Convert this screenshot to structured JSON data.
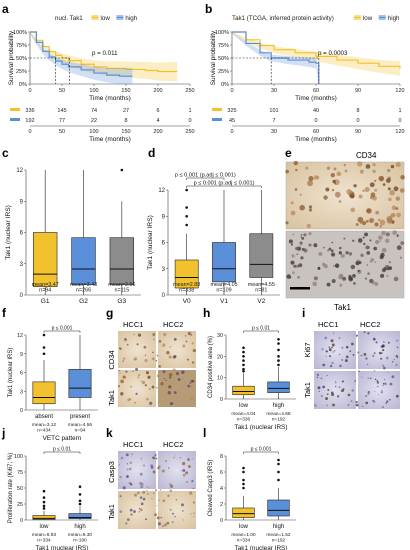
{
  "colors": {
    "low": "#f2c12e",
    "high": "#5b8fd9",
    "grey": "#8c8c8c",
    "axis": "#333333"
  },
  "panels": {
    "a": {
      "letter": "a"
    },
    "b": {
      "letter": "b"
    },
    "c": {
      "letter": "c"
    },
    "d": {
      "letter": "d"
    },
    "e": {
      "letter": "e",
      "top_label": "CD34",
      "bottom_label": "Tak1"
    },
    "f": {
      "letter": "f"
    },
    "g": {
      "letter": "g",
      "col1": "HCC1",
      "col2": "HCC2",
      "row1": "CD34",
      "row2": "Tak1"
    },
    "h": {
      "letter": "h"
    },
    "i": {
      "letter": "i",
      "col1": "HCC1",
      "col2": "HCC2",
      "row1": "Ki67",
      "row2": "Tak1"
    },
    "j": {
      "letter": "j"
    },
    "k": {
      "letter": "k",
      "col1": "HCC1",
      "col2": "HCC2",
      "row1": "Casp3",
      "row2": "Tak1"
    },
    "l": {
      "letter": "l"
    }
  },
  "chart_data": [
    {
      "id": "a",
      "type": "line",
      "legend_title": "nucl. Tak1",
      "xlabel": "Time (months)",
      "ylabel": "Survival probability",
      "xlim": [
        0,
        250
      ],
      "ylim": [
        0,
        1
      ],
      "xticks": [
        "0",
        "50",
        "100",
        "150",
        "200",
        "250"
      ],
      "yticks": [
        "0%",
        "25%",
        "50%",
        "75%",
        "100%"
      ],
      "pvalue": "p = 0.011",
      "median_x": [
        40,
        62
      ],
      "series": [
        {
          "name": "low",
          "x": [
            0,
            10,
            20,
            30,
            40,
            50,
            60,
            80,
            100,
            120,
            150,
            180,
            200,
            230
          ],
          "y": [
            1.0,
            0.84,
            0.72,
            0.62,
            0.55,
            0.5,
            0.45,
            0.38,
            0.33,
            0.3,
            0.28,
            0.26,
            0.24,
            0.24
          ]
        },
        {
          "name": "high",
          "x": [
            0,
            10,
            20,
            30,
            40,
            50,
            60,
            80,
            100,
            120,
            140,
            160
          ],
          "y": [
            1.0,
            0.8,
            0.63,
            0.52,
            0.44,
            0.38,
            0.33,
            0.27,
            0.21,
            0.17,
            0.15,
            0.15
          ]
        }
      ],
      "risk_table": {
        "x": [
          "0",
          "50",
          "100",
          "150",
          "200",
          "250"
        ],
        "rows": [
          {
            "name": "low",
            "values": [
              "336",
              "145",
              "74",
              "27",
              "6",
              "1"
            ]
          },
          {
            "name": "high",
            "values": [
              "192",
              "77",
              "22",
              "8",
              "4",
              "0"
            ]
          }
        ]
      }
    },
    {
      "id": "b",
      "type": "line",
      "legend_title": "Tak1 (TCGA, inferred protein activity)",
      "xlabel": "Time (months)",
      "ylabel": "Survival probability",
      "xlim": [
        0,
        120
      ],
      "ylim": [
        0,
        1
      ],
      "xticks": [
        "0",
        "30",
        "60",
        "90",
        "120"
      ],
      "yticks": [
        "0%",
        "25%",
        "50%",
        "75%",
        "100%"
      ],
      "pvalue": "p = 0.0003",
      "median_x": [
        28,
        62
      ],
      "series": [
        {
          "name": "low",
          "x": [
            0,
            10,
            20,
            30,
            45,
            60,
            75,
            90,
            105,
            120
          ],
          "y": [
            1.0,
            0.85,
            0.74,
            0.66,
            0.6,
            0.53,
            0.46,
            0.4,
            0.34,
            0.3
          ]
        },
        {
          "name": "high",
          "x": [
            0,
            10,
            20,
            28,
            40,
            55,
            60,
            62
          ],
          "y": [
            1.0,
            0.78,
            0.6,
            0.5,
            0.46,
            0.42,
            0.4,
            0.0
          ]
        }
      ],
      "risk_table": {
        "x": [
          "0",
          "30",
          "60",
          "90",
          "120"
        ],
        "rows": [
          {
            "name": "low",
            "values": [
              "325",
              "101",
              "40",
              "8",
              "1"
            ]
          },
          {
            "name": "high",
            "values": [
              "45",
              "7",
              "0",
              "0",
              "0"
            ]
          }
        ]
      }
    },
    {
      "id": "c",
      "type": "box",
      "ylabel": "Tak1 (nuclear IRS)",
      "ylim": [
        0,
        12
      ],
      "yticks": [
        "0",
        "3",
        "6",
        "9",
        "12"
      ],
      "categories": [
        "G1",
        "G2",
        "G3"
      ],
      "boxes": [
        {
          "q1": 0.8,
          "median": 2,
          "q3": 6,
          "lo": 0,
          "hi": 12,
          "outliers": [],
          "color": "low"
        },
        {
          "q1": 1,
          "median": 2.5,
          "q3": 5.5,
          "lo": 0,
          "hi": 12,
          "outliers": [],
          "color": "high"
        },
        {
          "q1": 1,
          "median": 2.5,
          "q3": 5.5,
          "lo": 0,
          "hi": 9,
          "outliers": [
            12
          ],
          "color": "grey"
        }
      ],
      "annotations": [
        "mean=3.47\nn=94",
        "mean=3.43\nn=266",
        "mean=3.56\nn=115"
      ]
    },
    {
      "id": "d",
      "type": "box",
      "ylabel": "Tak1 (nuclear IRS)",
      "ylim": [
        0,
        12
      ],
      "yticks": [
        "0",
        "3",
        "6",
        "9",
        "12"
      ],
      "categories": [
        "V0",
        "V1",
        "V2"
      ],
      "boxes": [
        {
          "q1": 0.8,
          "median": 2,
          "q3": 4,
          "lo": 0,
          "hi": 7,
          "outliers": [
            8,
            9,
            10,
            12
          ],
          "color": "low"
        },
        {
          "q1": 1.5,
          "median": 3,
          "q3": 6,
          "lo": 0,
          "hi": 12,
          "outliers": [],
          "color": "high"
        },
        {
          "q1": 2,
          "median": 3.5,
          "q3": 7,
          "lo": 0,
          "hi": 12,
          "outliers": [],
          "color": "grey"
        }
      ],
      "brackets": [
        {
          "from": 0,
          "to": 2,
          "label": "p ≤ 0.001 (p.adj ≤ 0.001)"
        },
        {
          "from": 0,
          "to": 1,
          "label": "p ≤ 0.001 (p.adj ≤ 0.001)"
        }
      ],
      "annotations": [
        "mean=2.88\nn=338",
        "mean=4.05\nn=109",
        "mean=4.55\nn=81"
      ]
    },
    {
      "id": "f",
      "type": "box",
      "ylabel": "Tak1 (nuclear IRS)",
      "xlabel": "VETC pattern",
      "ylim": [
        0,
        12
      ],
      "yticks": [
        "0",
        "3",
        "6",
        "9",
        "12"
      ],
      "categories": [
        "absent",
        "present"
      ],
      "boxes": [
        {
          "q1": 1,
          "median": 2,
          "q3": 4.5,
          "lo": 0,
          "hi": 8,
          "outliers": [
            9,
            10,
            12
          ],
          "color": "low"
        },
        {
          "q1": 2,
          "median": 3.5,
          "q3": 6.5,
          "lo": 0,
          "hi": 12,
          "outliers": [],
          "color": "high"
        }
      ],
      "brackets": [
        {
          "from": 0,
          "to": 1,
          "label": "p ≤ 0.001"
        }
      ],
      "annotations": [
        "mean=3.12\nn=434",
        "mean=4.56\nn=94"
      ]
    },
    {
      "id": "h",
      "type": "box",
      "ylabel": "CD34 positive area (%)",
      "xlabel": "Tak1 (nuclear IRS)",
      "ylim": [
        0,
        30
      ],
      "yticks": [
        "0",
        "10",
        "20",
        "30"
      ],
      "categories": [
        "low",
        "high"
      ],
      "boxes": [
        {
          "q1": 2,
          "median": 3.5,
          "q3": 6,
          "lo": 0,
          "hi": 12,
          "outliers": [
            13,
            14,
            16,
            18,
            20,
            22,
            24
          ],
          "color": "low"
        },
        {
          "q1": 3,
          "median": 5,
          "q3": 8,
          "lo": 0,
          "hi": 15,
          "outliers": [
            16,
            18,
            20,
            23,
            26,
            28
          ],
          "color": "high"
        }
      ],
      "brackets": [
        {
          "from": 0,
          "to": 1,
          "label": "p ≤ 0.01"
        }
      ],
      "annotations": [
        "mean=4.04\nn=336",
        "mean=4.68\nn=192"
      ]
    },
    {
      "id": "j",
      "type": "box",
      "ylabel": "Proliferation rate (Ki67; %)",
      "xlabel": "Tak1 (nuclear IRS)",
      "ylim": [
        0,
        100
      ],
      "yticks": [
        "0",
        "25",
        "50",
        "75",
        "100"
      ],
      "categories": [
        "low",
        "high"
      ],
      "boxes": [
        {
          "q1": 1,
          "median": 2.5,
          "q3": 7,
          "lo": 0,
          "hi": 14,
          "outliers": [
            18,
            22,
            28,
            35,
            45
          ],
          "color": "low"
        },
        {
          "q1": 2,
          "median": 4,
          "q3": 10,
          "lo": 0,
          "hi": 22,
          "outliers": [
            25,
            30,
            40,
            52
          ],
          "color": "high"
        }
      ],
      "brackets": [
        {
          "from": 0,
          "to": 1,
          "label": "p ≤ 0.01"
        }
      ],
      "annotations": [
        "mean=6.93\nn=334",
        "mean=9.30\nn=190"
      ]
    },
    {
      "id": "l",
      "type": "box",
      "ylabel": "Cleaved Casp3 (IRS)",
      "xlabel": "Tak1 (nuclear IRS)",
      "ylim": [
        0,
        8
      ],
      "yticks": [
        "0",
        "2",
        "4",
        "6",
        "8"
      ],
      "categories": [
        "low",
        "high"
      ],
      "boxes": [
        {
          "q1": 0.3,
          "median": 0.8,
          "q3": 1.5,
          "lo": 0,
          "hi": 3,
          "outliers": [
            4,
            4.5,
            5,
            6,
            6.5
          ],
          "color": "low"
        },
        {
          "q1": 0.5,
          "median": 1.2,
          "q3": 2.5,
          "lo": 0,
          "hi": 4,
          "outliers": [
            5,
            6,
            7,
            7.5
          ],
          "color": "high"
        }
      ],
      "brackets": [
        {
          "from": 0,
          "to": 1,
          "label": "p ≤ 0.001"
        }
      ],
      "annotations": [
        "mean=1.00\nn=334",
        "mean=1.52\nn=192"
      ]
    }
  ]
}
